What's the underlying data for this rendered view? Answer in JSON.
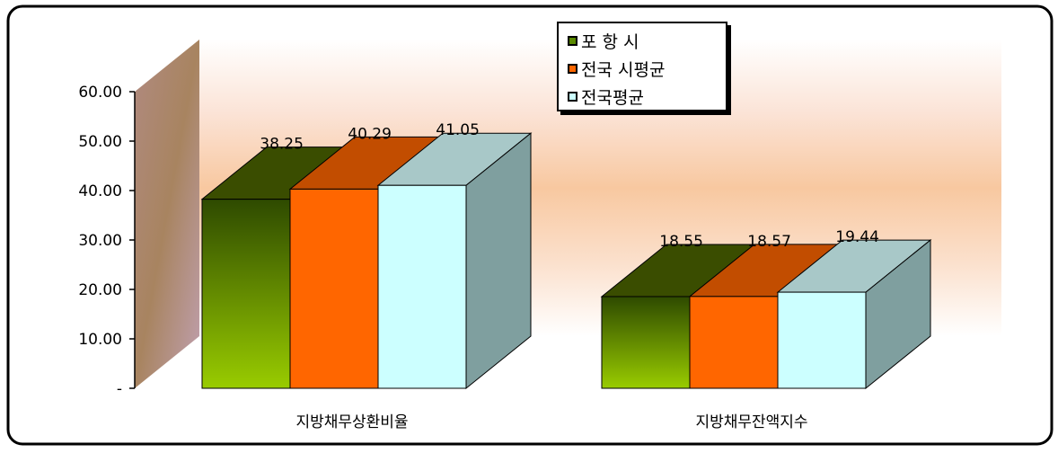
{
  "chart_data": {
    "type": "bar",
    "categories": [
      "지방채무상환비율",
      "지방채무잔액지수"
    ],
    "series": [
      {
        "name": "포 항 시",
        "values": [
          38.25,
          18.55
        ],
        "color": "#5a8a00"
      },
      {
        "name": "전국 시평균",
        "values": [
          40.29,
          18.57
        ],
        "color": "#ff6600"
      },
      {
        "name": "전국평균",
        "values": [
          41.05,
          19.44
        ],
        "color": "#ccffff"
      }
    ],
    "value_labels": [
      [
        "38.25",
        "18.55"
      ],
      [
        "40.29",
        "18.57"
      ],
      [
        "41.05",
        "19.44"
      ]
    ],
    "ylim": [
      0,
      60
    ],
    "yticks": [
      0,
      10,
      20,
      30,
      40,
      50,
      60
    ],
    "ytick_labels": [
      "-",
      "10.00",
      "20.00",
      "30.00",
      "40.00",
      "50.00",
      "60.00"
    ],
    "legend_position": "top-center",
    "grid": false
  }
}
